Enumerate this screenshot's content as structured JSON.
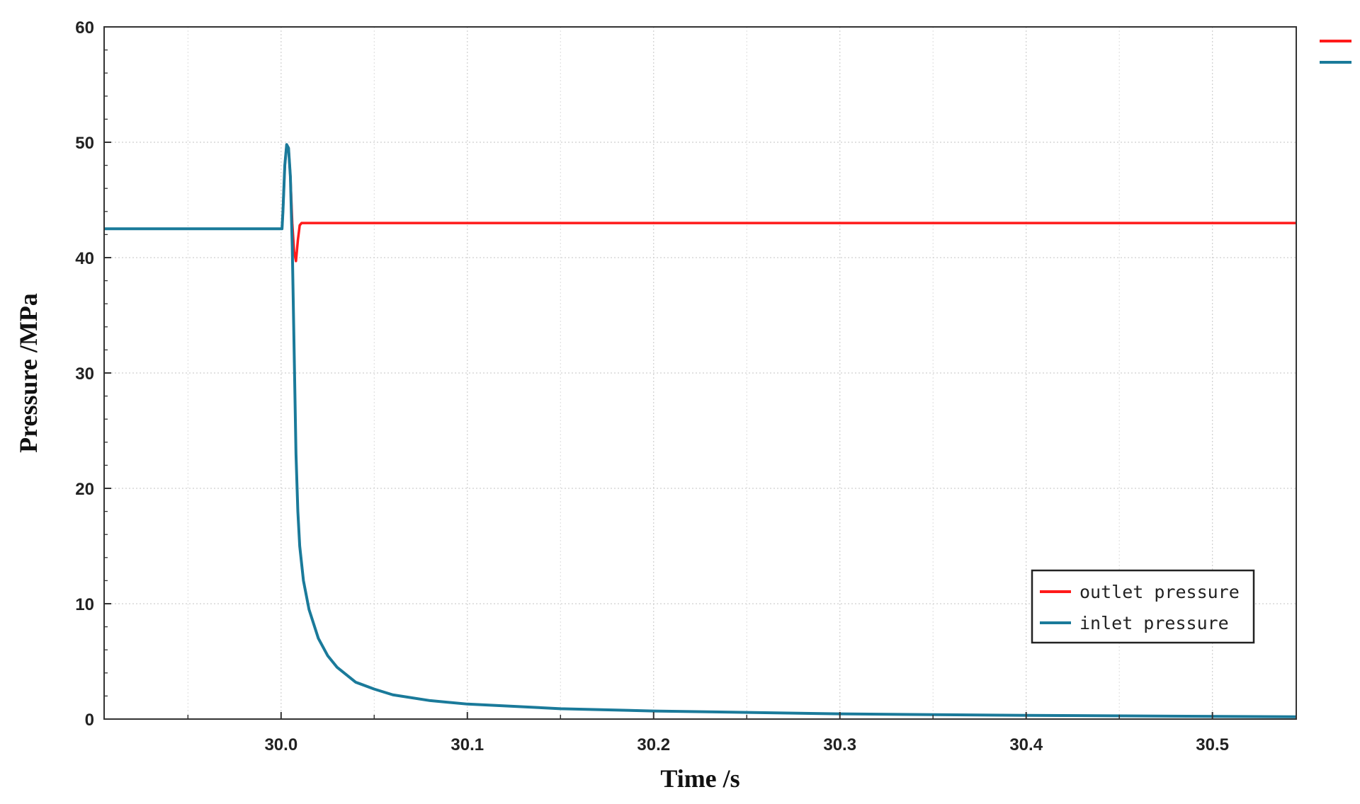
{
  "chart_data": {
    "type": "line",
    "xlabel": "Time /s",
    "ylabel": "Pressure /MPa",
    "xlim": [
      29.905,
      30.545
    ],
    "ylim": [
      0,
      60
    ],
    "x_ticks": [
      "30.0",
      "30.1",
      "30.2",
      "30.3",
      "30.4",
      "30.5"
    ],
    "y_ticks": [
      "0",
      "10",
      "20",
      "30",
      "40",
      "50",
      "60"
    ],
    "grid": true,
    "legend_position": "lower-right",
    "series": [
      {
        "name": "outlet pressure",
        "color": "#ff1a1a",
        "points": [
          [
            29.905,
            42.5
          ],
          [
            30.0005,
            42.5
          ],
          [
            30.001,
            44.0
          ],
          [
            30.002,
            48.0
          ],
          [
            30.003,
            49.8
          ],
          [
            30.004,
            49.5
          ],
          [
            30.005,
            47.0
          ],
          [
            30.006,
            43.0
          ],
          [
            30.007,
            40.5
          ],
          [
            30.008,
            39.7
          ],
          [
            30.009,
            41.5
          ],
          [
            30.01,
            42.8
          ],
          [
            30.011,
            43.0
          ],
          [
            30.545,
            43.0
          ]
        ]
      },
      {
        "name": "inlet pressure",
        "color": "#1a7a9a",
        "points": [
          [
            29.905,
            42.5
          ],
          [
            30.0005,
            42.5
          ],
          [
            30.001,
            44.0
          ],
          [
            30.002,
            48.0
          ],
          [
            30.003,
            49.8
          ],
          [
            30.004,
            49.5
          ],
          [
            30.005,
            47.0
          ],
          [
            30.006,
            41.0
          ],
          [
            30.007,
            32.0
          ],
          [
            30.008,
            23.0
          ],
          [
            30.009,
            18.0
          ],
          [
            30.01,
            15.0
          ],
          [
            30.012,
            12.0
          ],
          [
            30.015,
            9.5
          ],
          [
            30.02,
            7.0
          ],
          [
            30.025,
            5.5
          ],
          [
            30.03,
            4.5
          ],
          [
            30.04,
            3.2
          ],
          [
            30.05,
            2.6
          ],
          [
            30.06,
            2.1
          ],
          [
            30.08,
            1.6
          ],
          [
            30.1,
            1.3
          ],
          [
            30.15,
            0.9
          ],
          [
            30.2,
            0.7
          ],
          [
            30.3,
            0.45
          ],
          [
            30.4,
            0.32
          ],
          [
            30.545,
            0.2
          ]
        ]
      }
    ]
  }
}
